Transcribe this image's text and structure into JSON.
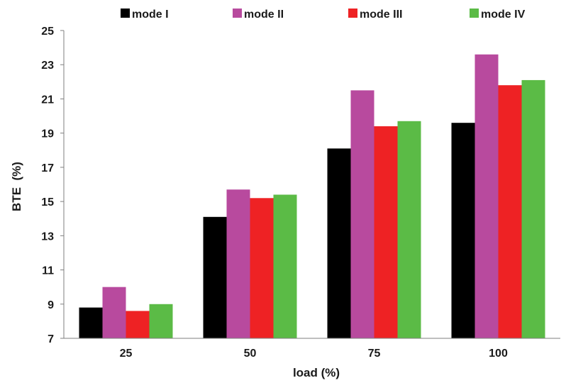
{
  "chart_data": {
    "type": "bar",
    "title": "",
    "xlabel": "load (%)",
    "ylabel": "BTE  (%)",
    "categories": [
      "25",
      "50",
      "75",
      "100"
    ],
    "ylim": [
      7,
      25
    ],
    "yticks": [
      "7",
      "9",
      "11",
      "13",
      "15",
      "17",
      "19",
      "21",
      "23",
      "25"
    ],
    "grid": false,
    "legend_position": "top",
    "series": [
      {
        "name": "mode I",
        "color": "#000000",
        "values": [
          8.8,
          14.1,
          18.1,
          19.6
        ]
      },
      {
        "name": "mode II",
        "color": "#b84a9e",
        "values": [
          10.0,
          15.7,
          21.5,
          23.6
        ]
      },
      {
        "name": "mode III",
        "color": "#ee2224",
        "values": [
          8.6,
          15.2,
          19.4,
          21.8
        ]
      },
      {
        "name": "mode IV",
        "color": "#5bbb46",
        "values": [
          9.0,
          15.4,
          19.7,
          22.1
        ]
      }
    ]
  }
}
